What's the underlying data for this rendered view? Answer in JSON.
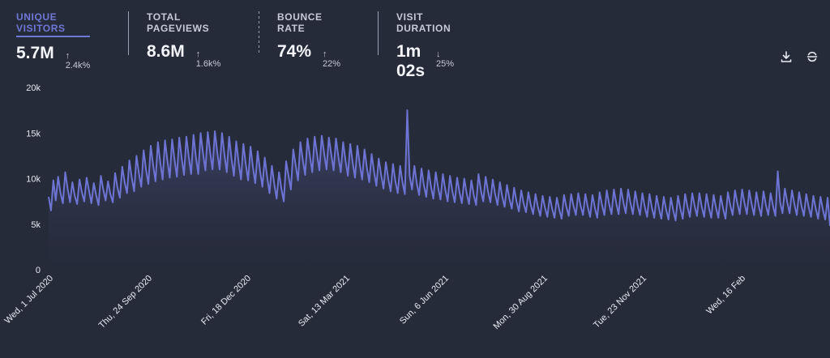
{
  "stats": [
    {
      "label": "UNIQUE VISITORS",
      "value": "5.7M",
      "change": "2.4k%",
      "direction": "up",
      "active": true
    },
    {
      "label": "TOTAL PAGEVIEWS",
      "value": "8.6M",
      "change": "1.6k%",
      "direction": "up",
      "active": false
    },
    {
      "label": "BOUNCE RATE",
      "value": "74%",
      "change": "22%",
      "direction": "up",
      "active": false
    },
    {
      "label": "VISIT DURATION",
      "value": "1m 02s",
      "change": "25%",
      "direction": "down",
      "active": false
    }
  ],
  "toolbar": {
    "download_icon": "download-icon",
    "interval_icon": "interval-icon"
  },
  "colors": {
    "background": "#262b3a",
    "line": "#6d74d3",
    "area_top": "#454a78",
    "area_bottom": "#262b3a",
    "axis_text": "#e8eaf2"
  },
  "chart_data": {
    "type": "area",
    "ylim": [
      0,
      20000
    ],
    "yticks": [
      "0",
      "5k",
      "10k",
      "15k",
      "20k"
    ],
    "xlabels": [
      "Wed, 1 Jul 2020",
      "Thu, 24 Sep 2020",
      "Fri, 18 Dec 2020",
      "Sat, 13 Mar 2021",
      "Sun, 6 Jun 2021",
      "Mon, 30 Aug 2021",
      "Tue, 23 Nov 2021",
      "Wed, 16 Feb"
    ],
    "series": [
      {
        "values": [
          8000,
          6500,
          9800,
          7600,
          10200,
          8400,
          7300,
          10700,
          8900,
          7400,
          9600,
          8100,
          7200,
          9900,
          8500,
          7500,
          10100,
          8700,
          7300,
          9500,
          8200,
          7100,
          10300,
          8800,
          7600,
          9700,
          8300,
          7400,
          10600,
          9000,
          7900,
          11300,
          9600,
          8400,
          12000,
          10100,
          8600,
          12500,
          10600,
          9100,
          13100,
          11000,
          9400,
          13600,
          11500,
          9700,
          14000,
          11800,
          9900,
          14200,
          12000,
          10100,
          14300,
          12100,
          10200,
          14500,
          12300,
          10400,
          14600,
          12400,
          10500,
          14800,
          12400,
          10500,
          15000,
          12800,
          10900,
          15100,
          12900,
          11000,
          15200,
          12900,
          11000,
          15000,
          12700,
          10700,
          14600,
          12200,
          10300,
          14100,
          11800,
          9900,
          13800,
          11600,
          9800,
          13500,
          11300,
          9500,
          13000,
          10900,
          9100,
          12300,
          10200,
          8400,
          11400,
          9400,
          7800,
          10700,
          8900,
          7500,
          11900,
          10300,
          8800,
          13200,
          11500,
          9800,
          14000,
          12100,
          10400,
          14400,
          12500,
          10700,
          14600,
          12700,
          10900,
          14700,
          12800,
          11000,
          14500,
          12700,
          10900,
          14400,
          12400,
          10700,
          14000,
          12000,
          10300,
          13800,
          11800,
          10100,
          13600,
          11600,
          9900,
          13200,
          11200,
          9600,
          12700,
          10800,
          9200,
          12200,
          10400,
          8900,
          11800,
          10000,
          8600,
          11600,
          9700,
          8400,
          11400,
          9600,
          8300,
          17500,
          10300,
          8800,
          11400,
          9500,
          8200,
          11100,
          9300,
          8000,
          10900,
          9100,
          7800,
          10700,
          9000,
          7700,
          10500,
          8800,
          7500,
          10300,
          8600,
          7400,
          10100,
          8500,
          7300,
          10000,
          8400,
          7200,
          9800,
          8200,
          7100,
          10500,
          8700,
          7500,
          10200,
          8600,
          7400,
          9900,
          8300,
          7100,
          9600,
          8000,
          6900,
          9300,
          7800,
          6700,
          9000,
          7500,
          6400,
          8700,
          7300,
          6300,
          8500,
          7100,
          6100,
          8300,
          6900,
          5900,
          8100,
          6800,
          5800,
          8000,
          6700,
          5700,
          7900,
          6600,
          5600,
          8200,
          6900,
          5900,
          8300,
          7000,
          6000,
          8400,
          7000,
          6000,
          8300,
          6900,
          5800,
          8200,
          6800,
          5700,
          8500,
          7100,
          6000,
          8700,
          7200,
          6100,
          8800,
          7300,
          6100,
          8900,
          7400,
          6200,
          8800,
          7300,
          6100,
          8600,
          7100,
          6000,
          8400,
          6900,
          5800,
          8300,
          6800,
          5700,
          8100,
          6700,
          5600,
          8000,
          6600,
          5500,
          7900,
          6500,
          5400,
          8100,
          6700,
          5600,
          8300,
          6900,
          5800,
          8400,
          7000,
          5900,
          8400,
          6900,
          5800,
          8300,
          6800,
          5700,
          8200,
          6800,
          5700,
          8100,
          6700,
          5600,
          8500,
          7100,
          6000,
          8700,
          7300,
          6100,
          8800,
          7300,
          6100,
          8700,
          7200,
          6000,
          8500,
          7000,
          5900,
          8600,
          7100,
          6000,
          8400,
          7000,
          5900,
          10800,
          7400,
          6200,
          8900,
          7400,
          6200,
          8700,
          7200,
          6000,
          8500,
          7000,
          5900,
          8300,
          6900,
          5800,
          8100,
          6700,
          5600,
          8000,
          6600,
          5500,
          7900,
          4800
        ]
      }
    ]
  }
}
